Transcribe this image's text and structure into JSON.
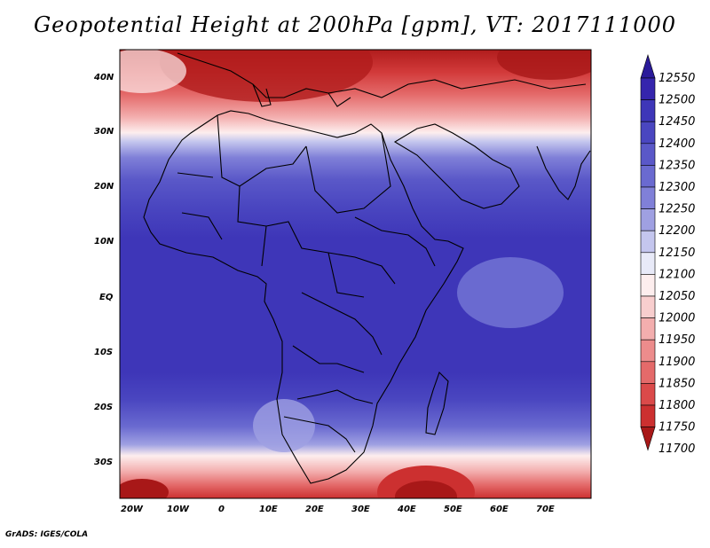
{
  "title": "Geopotential Height at 200hPa [gpm], VT: 2017111000",
  "footer": "GrADS: IGES/COLA",
  "map": {
    "lon_range": [
      -22,
      80
    ],
    "lat_range": [
      -37,
      45
    ],
    "x_ticks": [
      "20W",
      "10W",
      "0",
      "10E",
      "20E",
      "30E",
      "40E",
      "50E",
      "60E",
      "70E"
    ],
    "y_ticks": [
      "40N",
      "30N",
      "20N",
      "10N",
      "EQ",
      "10S",
      "20S",
      "30S"
    ]
  },
  "colorbar": {
    "levels": [
      "12550",
      "12500",
      "12450",
      "12400",
      "12350",
      "12300",
      "12250",
      "12200",
      "12150",
      "12100",
      "12050",
      "12000",
      "11950",
      "11900",
      "11850",
      "11800",
      "11750",
      "11700"
    ],
    "colors": [
      "#2a1a9a",
      "#3525ad",
      "#3e36b8",
      "#4a46c0",
      "#5a58c8",
      "#6a6ad0",
      "#8080d8",
      "#9fa0e2",
      "#c4c6ee",
      "#e8eaf8",
      "#fdeeee",
      "#f8cece",
      "#f3aeae",
      "#ec8c8c",
      "#e46a6a",
      "#db4a4a",
      "#cc3030",
      "#a81818"
    ]
  }
}
